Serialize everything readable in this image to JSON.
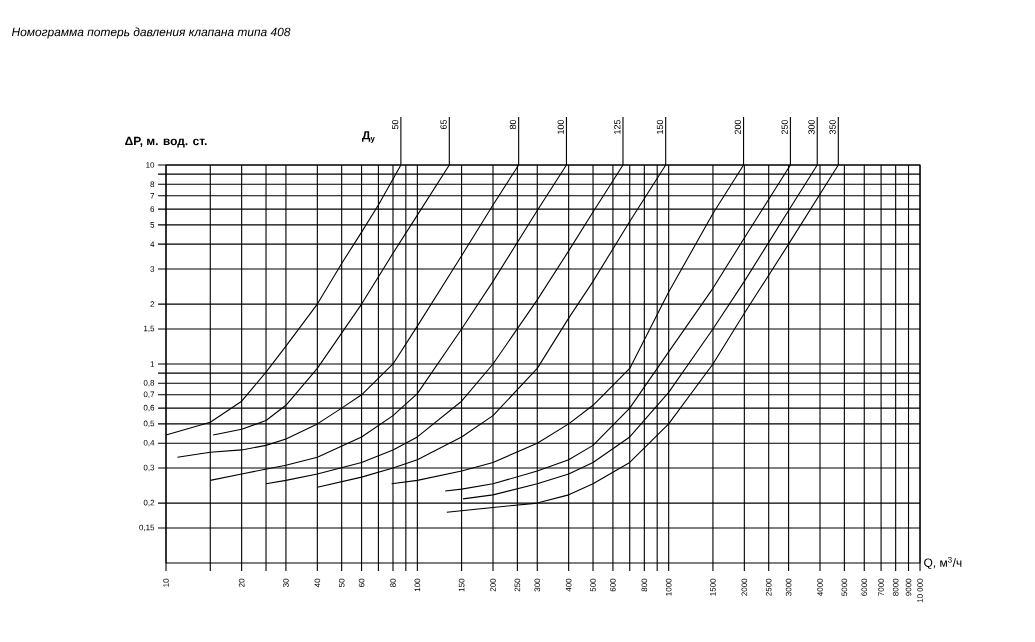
{
  "chart_data": {
    "type": "line",
    "title": "*Номограмма потерь давления клапана типа 408*",
    "ylabel": "**ΔP, м. вод. ст.**",
    "xlabel": "Q, м$^{3}$/ч",
    "legend_title": "**Д$_{у}$**",
    "log": "xy",
    "grid": true,
    "xlim": [
      10,
      10000
    ],
    "ylim": [
      0.1,
      10
    ],
    "xticks": [
      10,
      {
        "value": 15,
        "label": null
      },
      20,
      {
        "value": 25,
        "label": null
      },
      30,
      40,
      50,
      60,
      {
        "value": 70,
        "label": null
      },
      80,
      {
        "value": 90,
        "label": null
      },
      100,
      150,
      200,
      250,
      300,
      400,
      500,
      600,
      {
        "value": 700,
        "label": null
      },
      800,
      {
        "value": 900,
        "label": null
      },
      1000,
      1500,
      2000,
      2500,
      3000,
      4000,
      5000,
      6000,
      7000,
      8000,
      9000,
      {
        "value": 10000,
        "label": "10 000"
      }
    ],
    "yticks": [
      10,
      {
        "value": 9,
        "label": null
      },
      8,
      7,
      6,
      5,
      4,
      3,
      2,
      {
        "value": 1.5,
        "label": "1,5"
      },
      1,
      {
        "value": 0.9,
        "label": null
      },
      {
        "value": 0.8,
        "label": "0,8"
      },
      {
        "value": 0.7,
        "label": "0,7"
      },
      {
        "value": 0.6,
        "label": "0,6"
      },
      {
        "value": 0.5,
        "label": "0,5"
      },
      {
        "value": 0.4,
        "label": "0,4"
      },
      {
        "value": 0.3,
        "label": "0,3"
      },
      {
        "value": 0.2,
        "label": "0,2"
      },
      {
        "value": 0.15,
        "label": "0,15"
      }
    ],
    "series": [
      {
        "name": "50",
        "color": "#000000",
        "x": [
          10,
          15,
          20,
          25,
          30,
          40,
          50,
          60,
          70,
          86
        ],
        "values": [
          0.44,
          0.51,
          0.65,
          0.91,
          1.23,
          2,
          3.2,
          4.6,
          6.3,
          10
        ]
      },
      {
        "name": "65",
        "color": "#000000",
        "x": [
          15.4,
          20,
          25,
          30,
          40,
          60,
          80,
          100,
          134
        ],
        "values": [
          0.44,
          0.47,
          0.52,
          0.62,
          0.95,
          2,
          3.6,
          5.6,
          10
        ]
      },
      {
        "name": "80",
        "color": "#000000",
        "x": [
          11.1,
          15,
          20,
          25,
          30,
          40,
          50,
          60,
          80,
          100,
          150,
          200,
          253
        ],
        "values": [
          0.34,
          0.36,
          0.37,
          0.39,
          0.42,
          0.5,
          0.6,
          0.7,
          1,
          1.55,
          3.5,
          6.3,
          10
        ]
      },
      {
        "name": "100",
        "color": "#000000",
        "x": [
          15,
          20,
          30,
          40,
          60,
          80,
          100,
          150,
          200,
          300,
          392
        ],
        "values": [
          0.26,
          0.28,
          0.31,
          0.34,
          0.43,
          0.55,
          0.71,
          1.5,
          2.6,
          5.9,
          10
        ]
      },
      {
        "name": "125",
        "color": "#000000",
        "x": [
          25,
          30,
          40,
          60,
          80,
          100,
          150,
          200,
          300,
          400,
          500,
          658
        ],
        "values": [
          0.25,
          0.26,
          0.28,
          0.32,
          0.37,
          0.43,
          0.65,
          1,
          2.1,
          3.7,
          5.8,
          10
        ]
      },
      {
        "name": "150",
        "color": "#000000",
        "x": [
          40,
          60,
          80,
          100,
          150,
          200,
          300,
          400,
          500,
          700,
          973
        ],
        "values": [
          0.24,
          0.27,
          0.3,
          0.33,
          0.43,
          0.55,
          0.95,
          1.7,
          2.6,
          5.2,
          10
        ]
      },
      {
        "name": "200",
        "color": "#000000",
        "x": [
          79,
          100,
          150,
          200,
          300,
          400,
          500,
          700,
          1000,
          1500,
          1986
        ],
        "values": [
          0.25,
          0.26,
          0.29,
          0.32,
          0.4,
          0.5,
          0.62,
          0.95,
          2.3,
          5.7,
          10
        ]
      },
      {
        "name": "250",
        "color": "#000000",
        "x": [
          129,
          150,
          200,
          300,
          400,
          500,
          700,
          1000,
          1500,
          2000,
          3050
        ],
        "values": [
          0.23,
          0.235,
          0.25,
          0.29,
          0.33,
          0.39,
          0.6,
          1.15,
          2.4,
          4.3,
          10
        ]
      },
      {
        "name": "300",
        "color": "#000000",
        "x": [
          152,
          200,
          300,
          400,
          500,
          700,
          1000,
          1500,
          2000,
          3000,
          3900
        ],
        "values": [
          0.21,
          0.22,
          0.25,
          0.28,
          0.32,
          0.43,
          0.72,
          1.5,
          2.6,
          5.9,
          10
        ]
      },
      {
        "name": "350",
        "color": "#000000",
        "x": [
          131,
          200,
          300,
          400,
          500,
          700,
          1000,
          1500,
          2000,
          3000,
          4730
        ],
        "values": [
          0.18,
          0.19,
          0.2,
          0.22,
          0.25,
          0.32,
          0.5,
          1.0,
          1.8,
          4.0,
          10
        ]
      }
    ]
  }
}
